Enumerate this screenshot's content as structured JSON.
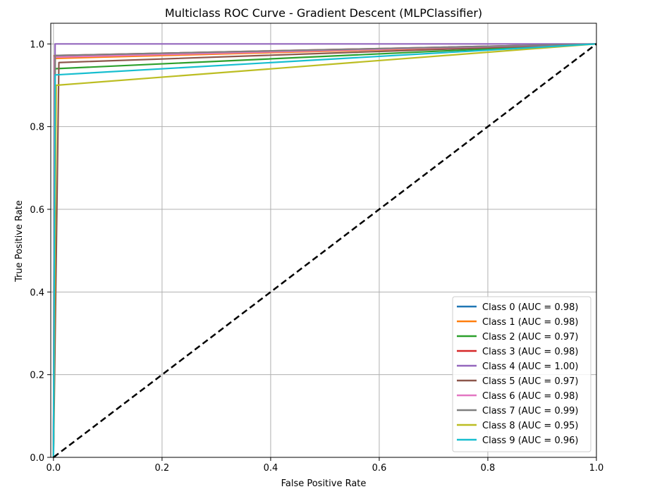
{
  "chart_data": {
    "type": "line",
    "title": "Multiclass ROC Curve - Gradient Descent (MLPClassifier)",
    "xlabel": "False Positive Rate",
    "ylabel": "True Positive Rate",
    "xlim": [
      -0.005,
      1.0
    ],
    "ylim": [
      0.0,
      1.05
    ],
    "xticks": [
      "0.0",
      "0.2",
      "0.4",
      "0.6",
      "0.8",
      "1.0"
    ],
    "yticks": [
      "0.0",
      "0.2",
      "0.4",
      "0.6",
      "0.8",
      "1.0"
    ],
    "grid": true,
    "legend_position": "lower right",
    "diagonal": {
      "x": [
        0,
        1
      ],
      "y": [
        0,
        1
      ],
      "color": "#000000",
      "style": "dashed"
    },
    "series": [
      {
        "name": "Class 0 (AUC = 0.98)",
        "color": "#1f77b4",
        "x": [
          0,
          0.003,
          1
        ],
        "y": [
          0,
          0.97,
          1
        ]
      },
      {
        "name": "Class 1 (AUC = 0.98)",
        "color": "#ff7f0e",
        "x": [
          0,
          0.003,
          1
        ],
        "y": [
          0,
          0.965,
          1
        ]
      },
      {
        "name": "Class 2 (AUC = 0.97)",
        "color": "#2ca02c",
        "x": [
          0,
          0.003,
          1
        ],
        "y": [
          0,
          0.94,
          1
        ]
      },
      {
        "name": "Class 3 (AUC = 0.98)",
        "color": "#d62728",
        "x": [
          0,
          0.002,
          1
        ],
        "y": [
          0,
          0.972,
          1
        ]
      },
      {
        "name": "Class 4 (AUC = 1.00)",
        "color": "#9467bd",
        "x": [
          0,
          0.003,
          1
        ],
        "y": [
          0,
          1.0,
          1
        ]
      },
      {
        "name": "Class 5 (AUC = 0.97)",
        "color": "#8c564b",
        "x": [
          0,
          0.01,
          1
        ],
        "y": [
          0,
          0.955,
          1
        ]
      },
      {
        "name": "Class 6 (AUC = 0.98)",
        "color": "#e377c2",
        "x": [
          0,
          0.002,
          1
        ],
        "y": [
          0,
          0.968,
          1
        ]
      },
      {
        "name": "Class 7 (AUC = 0.99)",
        "color": "#7f7f7f",
        "x": [
          0,
          0.003,
          1
        ],
        "y": [
          0,
          0.972,
          1
        ]
      },
      {
        "name": "Class 8 (AUC = 0.95)",
        "color": "#bcbd22",
        "x": [
          0,
          0.005,
          1
        ],
        "y": [
          0,
          0.9,
          1
        ]
      },
      {
        "name": "Class 9 (AUC = 0.96)",
        "color": "#17becf",
        "x": [
          0,
          0.003,
          1
        ],
        "y": [
          0,
          0.925,
          1
        ]
      }
    ]
  }
}
